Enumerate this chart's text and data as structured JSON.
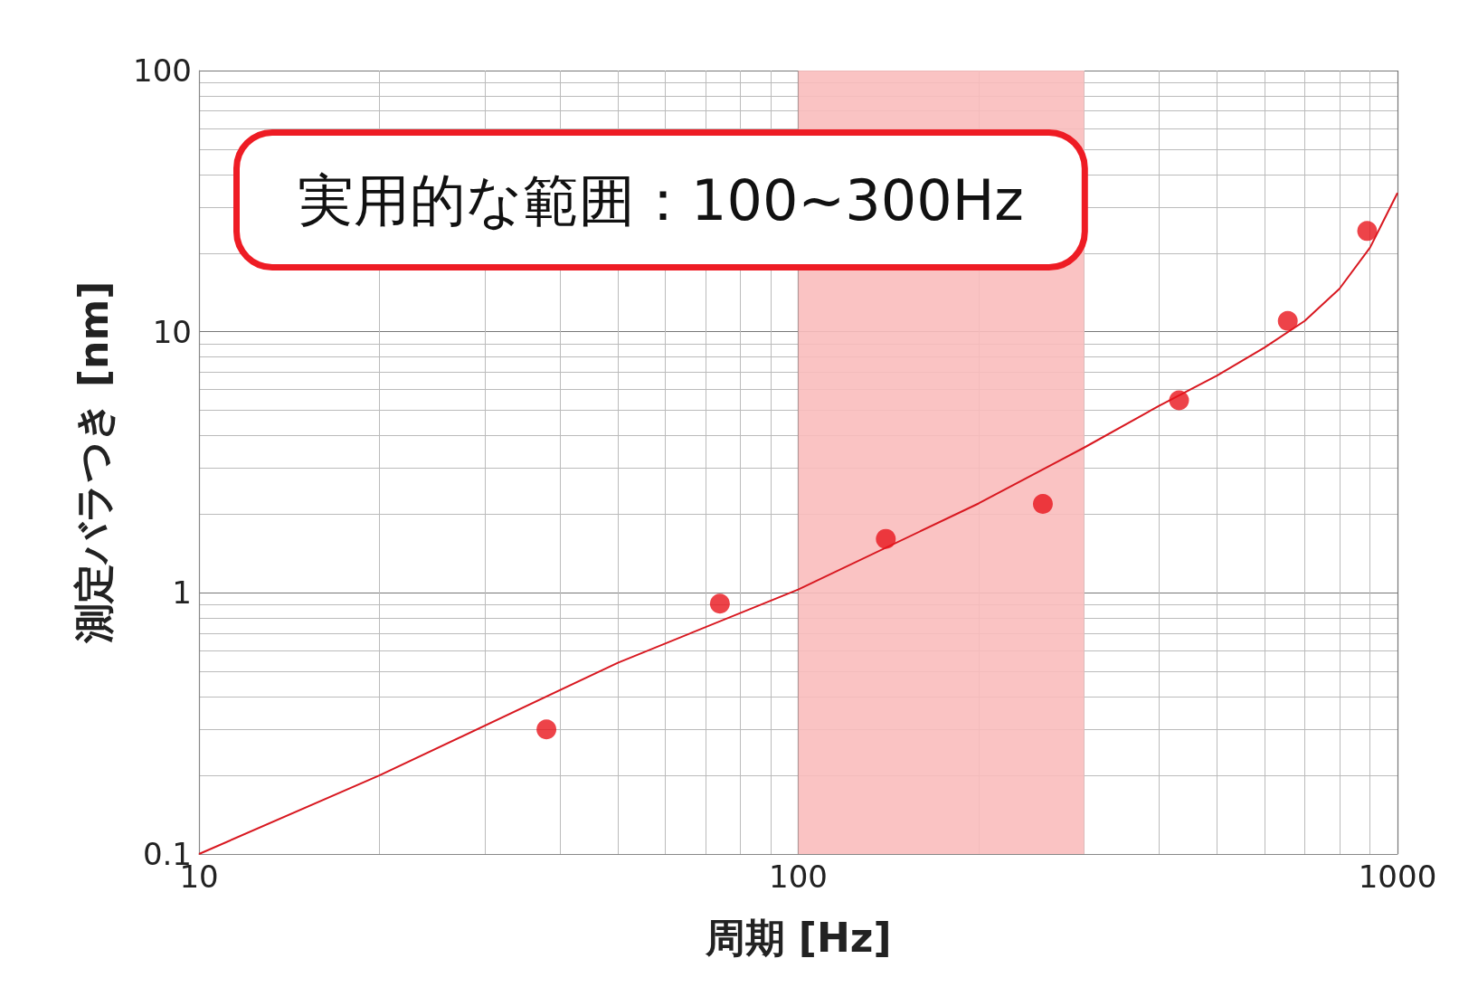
{
  "chart_data": {
    "type": "scatter",
    "xlabel": "周期 [Hz]",
    "ylabel": "測定バラつき [nm]",
    "log": "xy",
    "grid": true,
    "marker": "circle",
    "xlim": [
      10,
      1000
    ],
    "xticks": [
      10,
      100,
      1000
    ],
    "ylim": [
      0.1,
      100
    ],
    "yticks": [
      0.1,
      1,
      10,
      100
    ],
    "x": [
      38,
      74,
      140,
      256,
      432,
      656,
      890
    ],
    "series": [
      {
        "color": "#e8141b",
        "values": [
          0.3,
          0.91,
          1.61,
          2.19,
          5.46,
          11.0,
          24.3
        ]
      },
      {
        "type": "line",
        "color": "#d81820",
        "marker": "none",
        "x": [
          10,
          20,
          50,
          100,
          200,
          300,
          400,
          500,
          600,
          700,
          800,
          900,
          1000
        ],
        "values": [
          0.1,
          0.2,
          0.54,
          1.03,
          2.2,
          3.6,
          5.2,
          6.8,
          8.7,
          11.0,
          14.6,
          21,
          34
        ]
      }
    ],
    "bands": [
      {
        "axis": "x",
        "from": 100,
        "to": 300,
        "color": "#f9bcbc"
      }
    ],
    "annotations": [
      "実用的な範囲：100~300Hz"
    ]
  }
}
